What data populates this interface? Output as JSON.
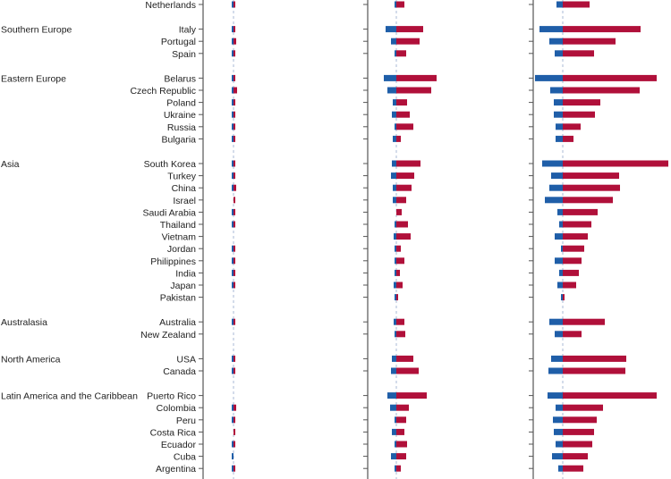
{
  "chart_data": {
    "type": "bar",
    "orientation": "horizontal",
    "layout": "diverging stacked bars, three panels sharing country rows",
    "colors": {
      "negative": "#1f5ea8",
      "positive": "#b0103a",
      "axis": "#555555",
      "center_line": "#a9b8d4"
    },
    "panels": [
      {
        "name": "panel-1",
        "xlim": [
          -34,
          34
        ]
      },
      {
        "name": "panel-2",
        "xlim": [
          -32,
          50
        ]
      },
      {
        "name": "panel-3",
        "xlim": [
          -33,
          120
        ]
      }
    ],
    "groups": [
      {
        "region": "",
        "countries": [
          {
            "name": "Netherlands",
            "values": [
              [
                -1,
                1.5
              ],
              [
                -2,
                9
              ],
              [
                -7,
                30
              ]
            ]
          }
        ]
      },
      {
        "region": "Southern Europe",
        "countries": [
          {
            "name": "Italy",
            "values": [
              [
                -2,
                1.5
              ],
              [
                -12,
                30
              ],
              [
                -26,
                87
              ]
            ]
          },
          {
            "name": "Portugal",
            "values": [
              [
                -1,
                3
              ],
              [
                -6,
                26
              ],
              [
                -15,
                59
              ]
            ]
          },
          {
            "name": "Spain",
            "values": [
              [
                -1,
                0.5
              ],
              [
                -2,
                11
              ],
              [
                -9,
                35
              ]
            ]
          }
        ]
      },
      {
        "region": "Eastern Europe",
        "countries": [
          {
            "name": "Belarus",
            "values": [
              [
                -1,
                0.5
              ],
              [
                -14,
                45
              ],
              [
                -31,
                105
              ]
            ]
          },
          {
            "name": "Czech Republic",
            "values": [
              [
                -0.5,
                4
              ],
              [
                -10,
                39
              ],
              [
                -14,
                86
              ]
            ]
          },
          {
            "name": "Poland",
            "values": [
              [
                -1,
                1.5
              ],
              [
                -4,
                12
              ],
              [
                -10,
                42
              ]
            ]
          },
          {
            "name": "Ukraine",
            "values": [
              [
                -1,
                0.5
              ],
              [
                -5,
                15
              ],
              [
                -10,
                36
              ]
            ]
          },
          {
            "name": "Russia",
            "values": [
              [
                -0.5,
                0.5
              ],
              [
                -2,
                19
              ],
              [
                -8,
                20
              ]
            ]
          },
          {
            "name": "Bulgaria",
            "values": [
              [
                -0.5,
                2
              ],
              [
                -4,
                5
              ],
              [
                -8,
                12
              ]
            ]
          }
        ]
      },
      {
        "region": "Asia",
        "countries": [
          {
            "name": "South Korea",
            "values": [
              [
                -1,
                2
              ],
              [
                -5,
                27
              ],
              [
                -23,
                118
              ]
            ]
          },
          {
            "name": "Turkey",
            "values": [
              [
                -1,
                1
              ],
              [
                -6,
                20
              ],
              [
                -13,
                63
              ]
            ]
          },
          {
            "name": "China",
            "values": [
              [
                -2,
                3
              ],
              [
                -4,
                17
              ],
              [
                -15,
                64
              ]
            ]
          },
          {
            "name": "Israel",
            "values": [
              [
                0,
                1
              ],
              [
                -4,
                11
              ],
              [
                -20,
                56
              ]
            ]
          },
          {
            "name": "Saudi Arabia",
            "values": [
              [
                -1,
                0.5
              ],
              [
                0,
                6
              ],
              [
                -6,
                39
              ]
            ]
          },
          {
            "name": "Thailand",
            "values": [
              [
                -1,
                0.5
              ],
              [
                -2,
                13
              ],
              [
                -4,
                32
              ]
            ]
          },
          {
            "name": "Vietnam",
            "values": [
              [
                0,
                0
              ],
              [
                -3,
                16
              ],
              [
                -9,
                28
              ]
            ]
          },
          {
            "name": "Jordan",
            "values": [
              [
                -1,
                0.5
              ],
              [
                -1,
                5
              ],
              [
                -1,
                24
              ]
            ]
          },
          {
            "name": "Philippines",
            "values": [
              [
                -0.5,
                1.5
              ],
              [
                -1,
                9
              ],
              [
                -9,
                21
              ]
            ]
          },
          {
            "name": "India",
            "values": [
              [
                -1,
                0.5
              ],
              [
                -2,
                4
              ],
              [
                -4,
                18
              ]
            ]
          },
          {
            "name": "Japan",
            "values": [
              [
                -1,
                0.5
              ],
              [
                -3,
                7
              ],
              [
                -6,
                15
              ]
            ]
          },
          {
            "name": "Pakistan",
            "values": [
              [
                0,
                0
              ],
              [
                -1,
                2
              ],
              [
                -2,
                2
              ]
            ]
          }
        ]
      },
      {
        "region": "Australasia",
        "countries": [
          {
            "name": "Australia",
            "values": [
              [
                -1,
                0.5
              ],
              [
                -3,
                9
              ],
              [
                -15,
                47
              ]
            ]
          },
          {
            "name": "New Zealand",
            "values": [
              [
                0,
                0
              ],
              [
                -2,
                10
              ],
              [
                -9,
                21
              ]
            ]
          }
        ]
      },
      {
        "region": "North America",
        "countries": [
          {
            "name": "USA",
            "values": [
              [
                -1,
                1
              ],
              [
                -5,
                19
              ],
              [
                -13,
                71
              ]
            ]
          },
          {
            "name": "Canada",
            "values": [
              [
                -1,
                1.5
              ],
              [
                -6,
                25
              ],
              [
                -16,
                70
              ]
            ]
          }
        ]
      },
      {
        "region": "Latin America and the Caribbean",
        "countries": [
          {
            "name": "Puerto Rico",
            "values": [
              [
                0,
                0
              ],
              [
                -10,
                34
              ],
              [
                -17,
                105
              ]
            ]
          },
          {
            "name": "Colombia",
            "values": [
              [
                -0.5,
                3
              ],
              [
                -7,
                14
              ],
              [
                -8,
                45
              ]
            ]
          },
          {
            "name": "Peru",
            "values": [
              [
                -1,
                1.5
              ],
              [
                -2,
                11
              ],
              [
                -11,
                38
              ]
            ]
          },
          {
            "name": "Costa Rica",
            "values": [
              [
                0,
                1
              ],
              [
                -5,
                9
              ],
              [
                -10,
                35
              ]
            ]
          },
          {
            "name": "Ecuador",
            "values": [
              [
                -1,
                1.5
              ],
              [
                -2,
                12
              ],
              [
                -8,
                33
              ]
            ]
          },
          {
            "name": "Cuba",
            "values": [
              [
                -0.5,
                0
              ],
              [
                -6,
                11
              ],
              [
                -12,
                28
              ]
            ]
          },
          {
            "name": "Argentina",
            "values": [
              [
                -1,
                0.5
              ],
              [
                -1,
                5
              ],
              [
                -5,
                23
              ]
            ]
          }
        ]
      }
    ]
  }
}
